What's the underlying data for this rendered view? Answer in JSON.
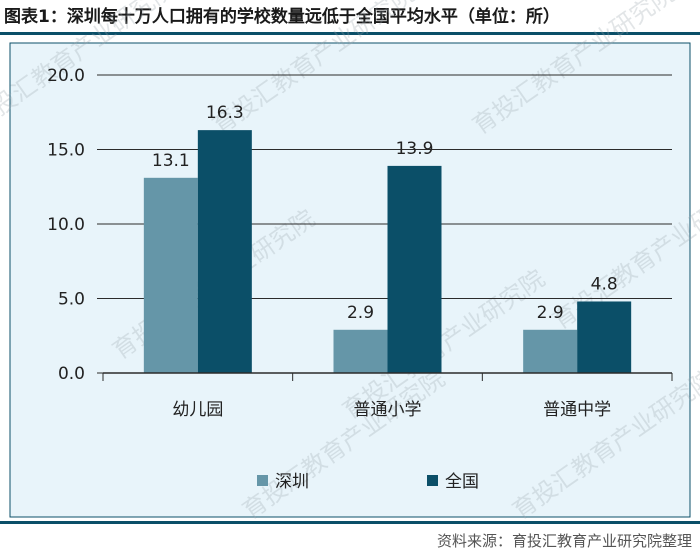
{
  "title": "图表1：深圳每十万人口拥有的学校数量远低于全国平均水平（单位：所）",
  "source": "资料来源：育投汇教育产业研究院整理",
  "watermark": "育投汇教育产业研究院",
  "colors": {
    "plot_background": "#e8f4fa",
    "series_shenzhen": "#6596a8",
    "series_national": "#0b4f68",
    "frame": "#0b4f68"
  },
  "chart_data": {
    "type": "bar",
    "title": "图表1：深圳每十万人口拥有的学校数量远低于全国平均水平（单位：所）",
    "categories": [
      "幼儿园",
      "普通小学",
      "普通中学"
    ],
    "series": [
      {
        "name": "深圳",
        "values": [
          13.1,
          2.9,
          2.9
        ]
      },
      {
        "name": "全国",
        "values": [
          16.3,
          13.9,
          4.8
        ]
      }
    ],
    "ylim": [
      0,
      20
    ],
    "yticks": [
      0,
      5,
      10,
      15,
      20
    ],
    "ytick_labels": [
      "0.0",
      "5.0",
      "10.0",
      "15.0",
      "20.0"
    ],
    "data_labels": [
      [
        "13.1",
        "2.9",
        "2.9"
      ],
      [
        "16.3",
        "13.9",
        "4.8"
      ]
    ],
    "grid": true,
    "legend_position": "bottom"
  }
}
